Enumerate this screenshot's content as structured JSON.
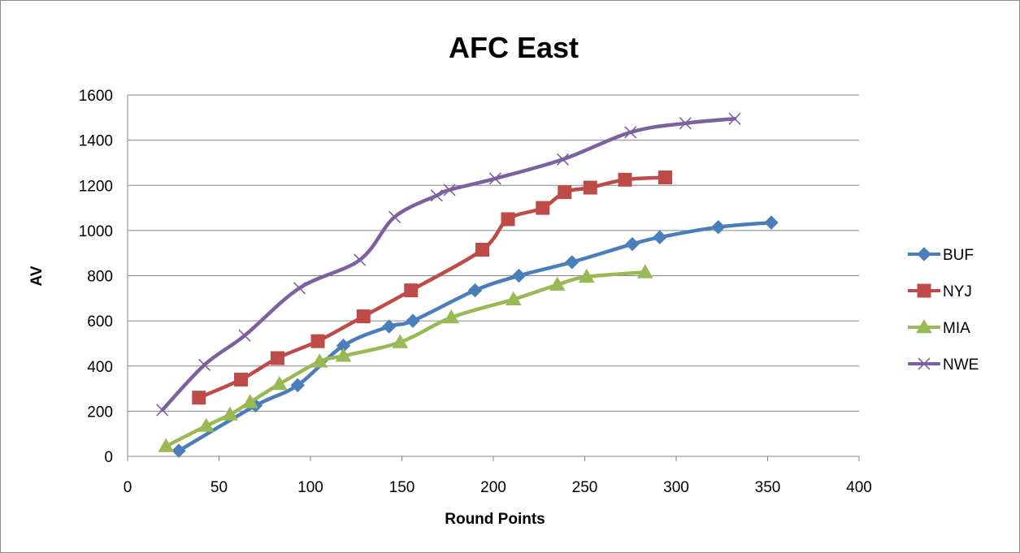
{
  "chart_data": {
    "type": "scatter",
    "title": "AFC East",
    "xlabel": "Round Points",
    "ylabel": "AV",
    "xlim": [
      0,
      400
    ],
    "ylim": [
      0,
      1600
    ],
    "x_ticks": [
      "0",
      "50",
      "100",
      "150",
      "200",
      "250",
      "300",
      "350",
      "400"
    ],
    "y_ticks": [
      "0",
      "200",
      "400",
      "600",
      "800",
      "1000",
      "1200",
      "1400",
      "1600"
    ],
    "grid": "horizontal",
    "legend_position": "right",
    "smoothed_lines": true,
    "series": [
      {
        "name": "BUF",
        "color": "#4a7ebb",
        "marker": "diamond",
        "x": [
          28,
          70,
          93,
          118,
          143,
          156,
          190,
          214,
          243,
          276,
          291,
          323,
          352
        ],
        "y": [
          25,
          225,
          315,
          490,
          575,
          600,
          735,
          800,
          860,
          940,
          970,
          1015,
          1035
        ]
      },
      {
        "name": "NYJ",
        "color": "#be4b48",
        "marker": "square",
        "x": [
          39,
          62,
          82,
          104,
          129,
          155,
          194,
          208,
          227,
          239,
          253,
          272,
          294
        ],
        "y": [
          260,
          340,
          435,
          510,
          620,
          735,
          915,
          1050,
          1100,
          1170,
          1190,
          1225,
          1235
        ]
      },
      {
        "name": "MIA",
        "color": "#98b954",
        "marker": "triangle",
        "x": [
          21,
          43,
          56,
          67,
          83,
          105,
          118,
          149,
          177,
          211,
          235,
          251,
          283
        ],
        "y": [
          45,
          135,
          185,
          240,
          320,
          420,
          445,
          505,
          615,
          695,
          760,
          795,
          815
        ]
      },
      {
        "name": "NWE",
        "color": "#7d60a0",
        "marker": "x",
        "x": [
          19,
          42,
          64,
          94,
          127,
          146,
          169,
          176,
          201,
          238,
          275,
          305,
          332
        ],
        "y": [
          205,
          405,
          535,
          745,
          870,
          1060,
          1155,
          1180,
          1230,
          1315,
          1435,
          1475,
          1495
        ]
      }
    ]
  }
}
